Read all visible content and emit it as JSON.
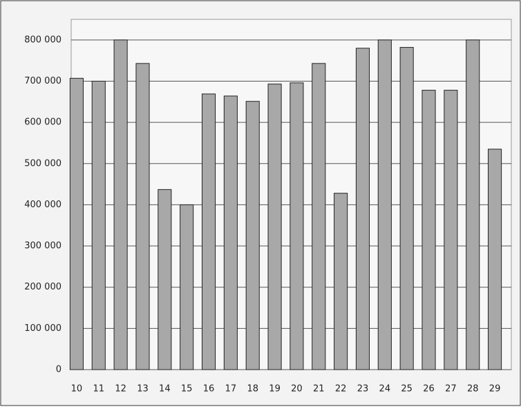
{
  "chart_data": {
    "type": "bar",
    "categories": [
      "10",
      "11",
      "12",
      "13",
      "14",
      "15",
      "16",
      "17",
      "18",
      "19",
      "20",
      "21",
      "22",
      "23",
      "24",
      "25",
      "26",
      "27",
      "28",
      "29"
    ],
    "values": [
      707000,
      700000,
      800000,
      743000,
      437000,
      400000,
      669000,
      664000,
      651000,
      693000,
      696000,
      743000,
      428000,
      780000,
      800000,
      782000,
      678000,
      678000,
      800000,
      535000
    ],
    "color": "#a8a8a8",
    "ylim": [
      0,
      850000
    ],
    "yticks": [
      0,
      {
        "value": 100000,
        "label": "100 000"
      },
      {
        "value": 200000,
        "label": "200 000"
      },
      {
        "value": 300000,
        "label": "300 000"
      },
      {
        "value": 400000,
        "label": "400 000"
      },
      {
        "value": 500000,
        "label": "500 000"
      },
      {
        "value": 600000,
        "label": "600 000"
      },
      {
        "value": 700000,
        "label": "700 000"
      },
      {
        "value": 800000,
        "label": "800 000"
      }
    ],
    "grid": true
  }
}
